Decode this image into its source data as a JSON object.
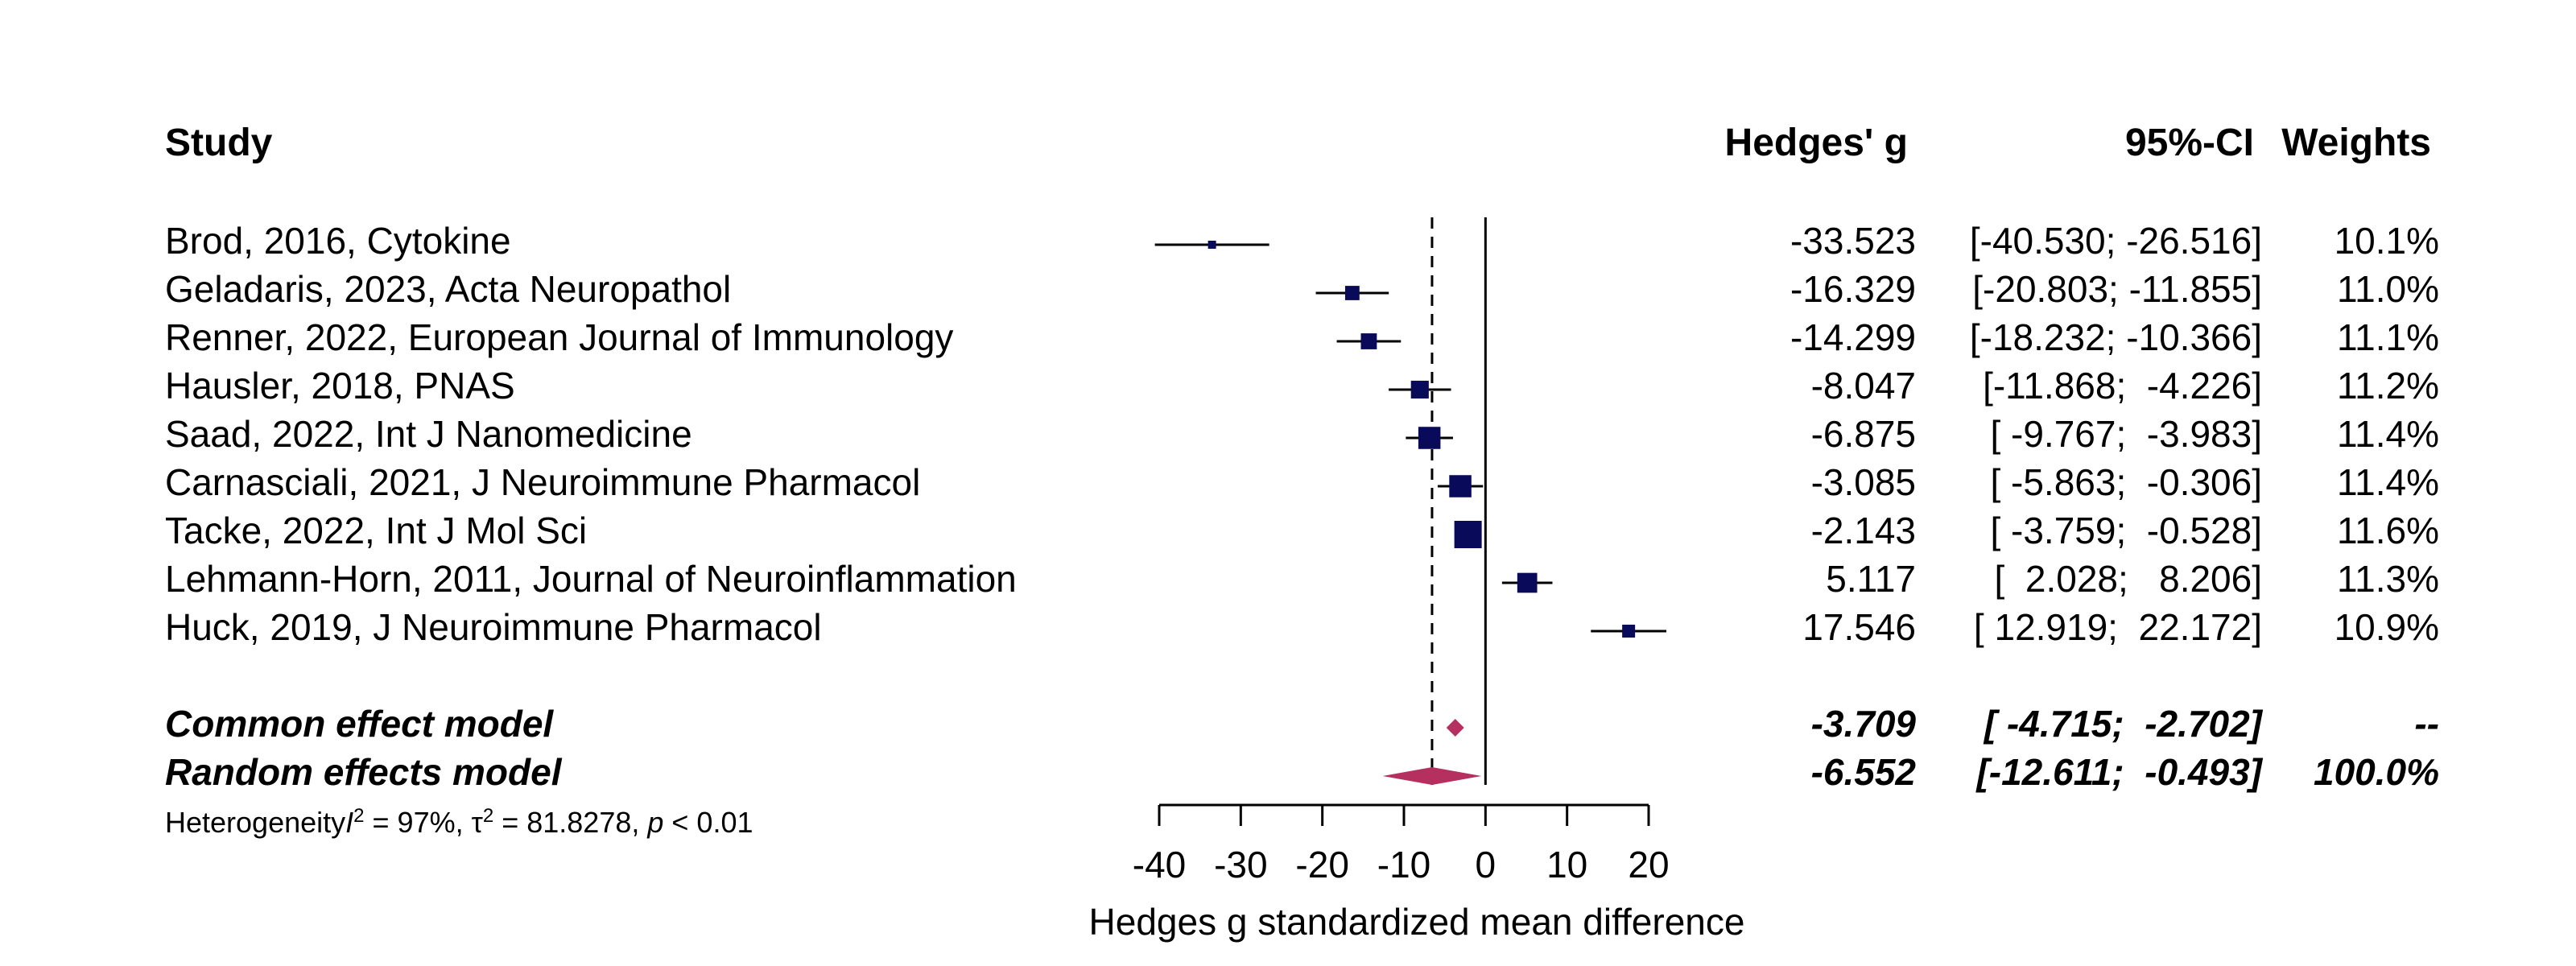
{
  "headers": {
    "study": "Study",
    "effect": "Hedges' g",
    "ci": "95%-CI",
    "weights": "Weights"
  },
  "studies": [
    {
      "label": "Brod, 2016, Cytokine",
      "g_text": "-33.523",
      "ci_text": "[-40.530; -26.516]",
      "weight_text": "10.1%"
    },
    {
      "label": "Geladaris, 2023, Acta Neuropathol",
      "g_text": "-16.329",
      "ci_text": "[-20.803; -11.855]",
      "weight_text": "11.0%"
    },
    {
      "label": "Renner, 2022, European Journal of Immunology",
      "g_text": "-14.299",
      "ci_text": "[-18.232; -10.366]",
      "weight_text": "11.1%"
    },
    {
      "label": "Hausler, 2018, PNAS",
      "g_text": "-8.047",
      "ci_text": "[-11.868;  -4.226]",
      "weight_text": "11.2%"
    },
    {
      "label": "Saad, 2022, Int J Nanomedicine",
      "g_text": "-6.875",
      "ci_text": "[ -9.767;  -3.983]",
      "weight_text": "11.4%"
    },
    {
      "label": "Carnasciali, 2021, J Neuroimmune Pharmacol",
      "g_text": "-3.085",
      "ci_text": "[ -5.863;  -0.306]",
      "weight_text": "11.4%"
    },
    {
      "label": "Tacke, 2022, Int J Mol Sci",
      "g_text": "-2.143",
      "ci_text": "[ -3.759;  -0.528]",
      "weight_text": "11.6%"
    },
    {
      "label": "Lehmann-Horn, 2011, Journal of Neuroinflammation",
      "g_text": "5.117",
      "ci_text": "[  2.028;   8.206]",
      "weight_text": "11.3%"
    },
    {
      "label": "Huck, 2019, J Neuroimmune Pharmacol",
      "g_text": "17.546",
      "ci_text": "[ 12.919;  22.172]",
      "weight_text": "10.9%"
    }
  ],
  "models": [
    {
      "label": "Common effect model",
      "g_text": "-3.709",
      "ci_text": "[ -4.715;  -2.702]",
      "weight_text": "--"
    },
    {
      "label": "Random effects model",
      "g_text": "-6.552",
      "ci_text": "[-12.611;  -0.493]",
      "weight_text": "100.0%"
    }
  ],
  "heterogeneity": {
    "prefix": "Heterogeneity",
    "i2_var": "I",
    "i2_sup": "2",
    "i2_value": " = 97%, ",
    "tau_var": "τ",
    "tau_sup": "2",
    "tau_value": " = 81.8278, ",
    "p_var": "p",
    "p_value": " < 0.01"
  },
  "chart_data": {
    "type": "forest",
    "xlabel": "Hedges g standardized mean difference",
    "xlim": [
      -40,
      20
    ],
    "xticks": [
      -40,
      -30,
      -20,
      -10,
      0,
      10,
      20
    ],
    "reference_line": 0,
    "random_effect_dashed_line": -6.552,
    "studies": [
      {
        "name": "Brod, 2016, Cytokine",
        "g": -33.523,
        "lower": -40.53,
        "upper": -26.516,
        "weight": 10.1
      },
      {
        "name": "Geladaris, 2023, Acta Neuropathol",
        "g": -16.329,
        "lower": -20.803,
        "upper": -11.855,
        "weight": 11.0
      },
      {
        "name": "Renner, 2022, European Journal of Immunology",
        "g": -14.299,
        "lower": -18.232,
        "upper": -10.366,
        "weight": 11.1
      },
      {
        "name": "Hausler, 2018, PNAS",
        "g": -8.047,
        "lower": -11.868,
        "upper": -4.226,
        "weight": 11.2
      },
      {
        "name": "Saad, 2022, Int J Nanomedicine",
        "g": -6.875,
        "lower": -9.767,
        "upper": -3.983,
        "weight": 11.4
      },
      {
        "name": "Carnasciali, 2021, J Neuroimmune Pharmacol",
        "g": -3.085,
        "lower": -5.863,
        "upper": -0.306,
        "weight": 11.4
      },
      {
        "name": "Tacke, 2022, Int J Mol Sci",
        "g": -2.143,
        "lower": -3.759,
        "upper": -0.528,
        "weight": 11.6
      },
      {
        "name": "Lehmann-Horn, 2011, Journal of Neuroinflammation",
        "g": 5.117,
        "lower": 2.028,
        "upper": 8.206,
        "weight": 11.3
      },
      {
        "name": "Huck, 2019, J Neuroimmune Pharmacol",
        "g": 17.546,
        "lower": 12.919,
        "upper": 22.172,
        "weight": 10.9
      }
    ],
    "pooled": [
      {
        "name": "Common effect model",
        "g": -3.709,
        "lower": -4.715,
        "upper": -2.702
      },
      {
        "name": "Random effects model",
        "g": -6.552,
        "lower": -12.611,
        "upper": -0.493
      }
    ],
    "colors": {
      "study_marker": "#0a0a5a",
      "diamond": "#b5305f",
      "line": "#000000"
    }
  }
}
